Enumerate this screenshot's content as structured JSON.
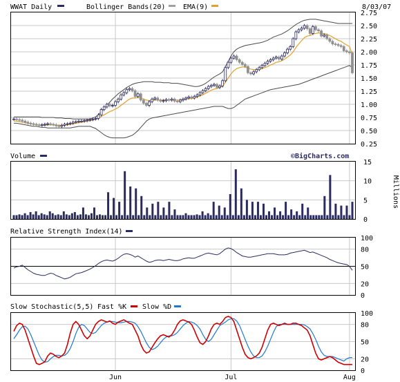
{
  "chart_data": [
    {
      "type": "candlestick",
      "panel": "price",
      "symbol_label": "WWAT Daily",
      "legend": [
        {
          "label": "WWAT Daily",
          "color": "#2b2b5f"
        },
        {
          "label": "Bollinger Bands(20)",
          "color": "#a0a0a0"
        },
        {
          "label": "EMA(9)",
          "color": "#e0a030"
        }
      ],
      "date_label": "8/03/07",
      "ylim": [
        0.25,
        2.75
      ],
      "yticks": [
        "2.75",
        "2.50",
        "2.25",
        "2.00",
        "1.75",
        "1.50",
        "1.25",
        "1.00",
        "0.75",
        "0.50",
        "0.25"
      ],
      "xticks": [
        {
          "label": "Jun",
          "index": 36
        },
        {
          "label": "Jul",
          "index": 77
        },
        {
          "label": "Aug",
          "index": 119
        }
      ],
      "close": [
        0.72,
        0.71,
        0.7,
        0.68,
        0.66,
        0.64,
        0.63,
        0.62,
        0.61,
        0.6,
        0.61,
        0.62,
        0.63,
        0.62,
        0.61,
        0.59,
        0.58,
        0.6,
        0.62,
        0.63,
        0.64,
        0.66,
        0.67,
        0.68,
        0.68,
        0.69,
        0.7,
        0.71,
        0.72,
        0.73,
        0.8,
        0.9,
        0.95,
        1.0,
        0.97,
        0.98,
        1.05,
        1.1,
        1.18,
        1.22,
        1.28,
        1.3,
        1.26,
        1.15,
        1.2,
        1.08,
        1.02,
        0.98,
        1.05,
        1.1,
        1.12,
        1.08,
        1.06,
        1.07,
        1.09,
        1.08,
        1.1,
        1.06,
        1.05,
        1.08,
        1.1,
        1.12,
        1.14,
        1.12,
        1.15,
        1.18,
        1.22,
        1.26,
        1.3,
        1.34,
        1.36,
        1.38,
        1.32,
        1.35,
        1.45,
        1.7,
        1.8,
        1.88,
        1.92,
        1.85,
        1.8,
        1.76,
        1.72,
        1.6,
        1.58,
        1.62,
        1.66,
        1.7,
        1.74,
        1.78,
        1.82,
        1.85,
        1.88,
        1.9,
        1.86,
        1.92,
        1.98,
        2.05,
        2.1,
        2.25,
        2.38,
        2.42,
        2.45,
        2.5,
        2.44,
        2.35,
        2.48,
        2.42,
        2.4,
        2.3,
        2.32,
        2.25,
        2.2,
        2.15,
        2.14,
        2.12,
        2.1,
        2.02,
        2.0,
        1.98,
        1.6
      ],
      "ema9": [
        0.68,
        0.68,
        0.67,
        0.66,
        0.65,
        0.64,
        0.63,
        0.62,
        0.61,
        0.6,
        0.6,
        0.6,
        0.61,
        0.61,
        0.61,
        0.6,
        0.6,
        0.6,
        0.6,
        0.61,
        0.62,
        0.63,
        0.64,
        0.65,
        0.66,
        0.67,
        0.68,
        0.69,
        0.7,
        0.71,
        0.73,
        0.77,
        0.8,
        0.83,
        0.86,
        0.88,
        0.91,
        0.94,
        0.98,
        1.02,
        1.06,
        1.1,
        1.12,
        1.12,
        1.13,
        1.12,
        1.1,
        1.08,
        1.07,
        1.08,
        1.08,
        1.08,
        1.08,
        1.08,
        1.08,
        1.08,
        1.08,
        1.08,
        1.08,
        1.08,
        1.09,
        1.1,
        1.11,
        1.11,
        1.12,
        1.14,
        1.16,
        1.18,
        1.21,
        1.24,
        1.27,
        1.29,
        1.3,
        1.32,
        1.35,
        1.42,
        1.5,
        1.58,
        1.64,
        1.68,
        1.7,
        1.71,
        1.71,
        1.69,
        1.67,
        1.66,
        1.66,
        1.67,
        1.68,
        1.7,
        1.72,
        1.75,
        1.77,
        1.8,
        1.81,
        1.83,
        1.86,
        1.9,
        1.94,
        2.0,
        2.08,
        2.15,
        2.21,
        2.27,
        2.3,
        2.31,
        2.34,
        2.35,
        2.36,
        2.35,
        2.35,
        2.33,
        2.31,
        2.28,
        2.25,
        2.22,
        2.2,
        2.16,
        2.13,
        2.1,
        1.95
      ],
      "bb_upper": [
        0.76,
        0.76,
        0.76,
        0.76,
        0.76,
        0.76,
        0.76,
        0.76,
        0.76,
        0.76,
        0.75,
        0.75,
        0.75,
        0.75,
        0.75,
        0.74,
        0.74,
        0.74,
        0.73,
        0.73,
        0.73,
        0.72,
        0.72,
        0.72,
        0.72,
        0.72,
        0.72,
        0.72,
        0.74,
        0.76,
        0.8,
        0.86,
        0.92,
        0.98,
        1.04,
        1.1,
        1.15,
        1.2,
        1.24,
        1.28,
        1.32,
        1.35,
        1.38,
        1.4,
        1.41,
        1.42,
        1.43,
        1.43,
        1.43,
        1.43,
        1.42,
        1.42,
        1.42,
        1.41,
        1.41,
        1.41,
        1.4,
        1.4,
        1.4,
        1.39,
        1.38,
        1.37,
        1.36,
        1.35,
        1.34,
        1.34,
        1.35,
        1.37,
        1.4,
        1.44,
        1.48,
        1.52,
        1.55,
        1.58,
        1.62,
        1.72,
        1.82,
        1.92,
        2.0,
        2.05,
        2.08,
        2.1,
        2.12,
        2.13,
        2.14,
        2.15,
        2.16,
        2.17,
        2.18,
        2.2,
        2.22,
        2.25,
        2.28,
        2.3,
        2.32,
        2.34,
        2.37,
        2.4,
        2.44,
        2.48,
        2.52,
        2.55,
        2.58,
        2.6,
        2.61,
        2.62,
        2.62,
        2.62,
        2.61,
        2.6,
        2.59,
        2.58,
        2.57,
        2.56,
        2.55,
        2.54,
        2.54,
        2.54,
        2.54,
        2.54,
        2.54
      ],
      "bb_lower": [
        0.64,
        0.64,
        0.63,
        0.62,
        0.61,
        0.6,
        0.59,
        0.58,
        0.58,
        0.57,
        0.56,
        0.56,
        0.55,
        0.55,
        0.55,
        0.55,
        0.55,
        0.55,
        0.55,
        0.55,
        0.55,
        0.56,
        0.57,
        0.58,
        0.58,
        0.58,
        0.58,
        0.58,
        0.56,
        0.54,
        0.5,
        0.46,
        0.42,
        0.39,
        0.37,
        0.36,
        0.36,
        0.36,
        0.36,
        0.36,
        0.37,
        0.39,
        0.41,
        0.45,
        0.5,
        0.56,
        0.62,
        0.68,
        0.72,
        0.74,
        0.75,
        0.76,
        0.77,
        0.78,
        0.79,
        0.8,
        0.81,
        0.82,
        0.83,
        0.84,
        0.85,
        0.86,
        0.87,
        0.88,
        0.89,
        0.9,
        0.91,
        0.92,
        0.93,
        0.94,
        0.95,
        0.96,
        0.96,
        0.96,
        0.96,
        0.94,
        0.92,
        0.92,
        0.94,
        0.98,
        1.02,
        1.06,
        1.1,
        1.12,
        1.14,
        1.16,
        1.18,
        1.2,
        1.22,
        1.24,
        1.26,
        1.28,
        1.29,
        1.3,
        1.31,
        1.32,
        1.33,
        1.34,
        1.35,
        1.36,
        1.37,
        1.38,
        1.4,
        1.42,
        1.44,
        1.46,
        1.48,
        1.5,
        1.52,
        1.54,
        1.56,
        1.58,
        1.6,
        1.62,
        1.64,
        1.66,
        1.68,
        1.7,
        1.72,
        1.74,
        1.7
      ]
    },
    {
      "type": "bar",
      "panel": "volume",
      "title": "Volume",
      "legend_color": "#2b2b5f",
      "credit": "©BigCharts.com",
      "ylabel": "Millions",
      "ylim": [
        0,
        15
      ],
      "yticks": [
        "15",
        "10",
        "5",
        "0"
      ],
      "values": [
        1.0,
        1.0,
        1.2,
        1.0,
        1.5,
        1.0,
        1.8,
        1.2,
        2.0,
        1.0,
        1.5,
        1.2,
        1.0,
        2.0,
        1.5,
        1.0,
        1.2,
        1.0,
        2.0,
        1.2,
        1.0,
        1.5,
        1.8,
        1.0,
        1.2,
        3.0,
        1.2,
        1.0,
        1.5,
        3.0,
        1.0,
        1.2,
        1.0,
        1.0,
        7.0,
        1.0,
        5.5,
        1.0,
        4.5,
        1.0,
        12.5,
        1.0,
        8.5,
        1.0,
        8.0,
        1.0,
        6.0,
        1.0,
        3.0,
        1.0,
        4.0,
        1.0,
        4.5,
        1.0,
        3.0,
        1.0,
        4.5,
        1.0,
        2.5,
        1.0,
        1.0,
        1.0,
        1.5,
        1.0,
        1.0,
        1.0,
        1.2,
        1.0,
        2.0,
        1.0,
        1.5,
        1.0,
        4.5,
        1.0,
        3.5,
        1.0,
        3.0,
        1.0,
        6.5,
        1.0,
        13.0,
        1.0,
        8.0,
        1.0,
        5.0,
        1.0,
        4.5,
        1.0,
        4.5,
        1.0,
        4.0,
        1.0,
        2.0,
        1.0,
        3.0,
        1.0,
        2.0,
        1.0,
        4.5,
        1.0,
        2.5,
        1.0,
        2.0,
        1.0,
        4.0,
        1.0,
        3.0,
        1.0,
        1.0,
        1.0,
        1.0,
        1.0,
        6.0,
        1.0,
        11.5,
        1.0,
        4.0,
        1.0,
        3.5,
        1.0,
        3.5,
        1.0,
        4.5
      ]
    },
    {
      "type": "line",
      "panel": "rsi",
      "title": "Relative Strength Index(14)",
      "legend_color": "#2b2b5f",
      "ylim": [
        0,
        100
      ],
      "yticks": [
        "100",
        "80",
        "50",
        "20",
        "0"
      ],
      "reference_line": 50,
      "values": [
        47,
        49,
        50,
        52,
        48,
        44,
        41,
        38,
        36,
        35,
        34,
        34,
        36,
        38,
        37,
        34,
        32,
        30,
        28,
        29,
        31,
        34,
        37,
        38,
        39,
        41,
        43,
        45,
        48,
        51,
        55,
        58,
        60,
        61,
        60,
        59,
        61,
        64,
        68,
        71,
        72,
        71,
        69,
        66,
        68,
        65,
        62,
        59,
        57,
        58,
        60,
        61,
        61,
        60,
        61,
        62,
        61,
        60,
        60,
        61,
        63,
        64,
        65,
        64,
        64,
        66,
        68,
        70,
        72,
        73,
        72,
        71,
        70,
        72,
        76,
        80,
        82,
        81,
        78,
        74,
        71,
        68,
        67,
        66,
        66,
        67,
        68,
        69,
        70,
        71,
        72,
        72,
        72,
        71,
        70,
        70,
        70,
        71,
        73,
        74,
        75,
        76,
        77,
        78,
        76,
        74,
        75,
        73,
        71,
        69,
        67,
        65,
        62,
        60,
        58,
        56,
        55,
        54,
        53,
        50,
        43
      ]
    },
    {
      "type": "line",
      "panel": "stochastic",
      "title": "Slow Stochastic(5,5)",
      "legend": [
        {
          "label": "Fast %K",
          "color": "#cc0000"
        },
        {
          "label": "Slow %D",
          "color": "#1e78d0"
        }
      ],
      "ylim": [
        0,
        100
      ],
      "yticks": [
        "100",
        "80",
        "50",
        "20",
        "0"
      ],
      "reference_lines": [
        80,
        20
      ],
      "fast_k": [
        68,
        78,
        82,
        80,
        70,
        55,
        40,
        25,
        12,
        10,
        12,
        15,
        25,
        30,
        28,
        24,
        22,
        25,
        30,
        45,
        65,
        80,
        85,
        80,
        70,
        60,
        55,
        60,
        70,
        80,
        85,
        88,
        86,
        84,
        86,
        82,
        80,
        84,
        86,
        88,
        85,
        82,
        80,
        70,
        60,
        45,
        35,
        30,
        32,
        40,
        48,
        55,
        60,
        62,
        60,
        58,
        62,
        70,
        80,
        86,
        88,
        86,
        84,
        80,
        70,
        58,
        48,
        45,
        50,
        60,
        72,
        80,
        82,
        80,
        85,
        92,
        94,
        92,
        85,
        70,
        55,
        40,
        28,
        22,
        20,
        22,
        25,
        30,
        40,
        55,
        70,
        80,
        82,
        80,
        78,
        80,
        82,
        80,
        80,
        82,
        82,
        80,
        78,
        74,
        70,
        60,
        45,
        30,
        20,
        18,
        20,
        22,
        24,
        22,
        18,
        14,
        12,
        10,
        10,
        10,
        10
      ],
      "slow_d": [
        55,
        62,
        70,
        76,
        77,
        72,
        62,
        50,
        38,
        26,
        18,
        14,
        15,
        20,
        24,
        26,
        26,
        25,
        26,
        30,
        38,
        50,
        64,
        75,
        80,
        78,
        72,
        66,
        64,
        66,
        72,
        78,
        82,
        84,
        85,
        85,
        84,
        83,
        83,
        84,
        85,
        85,
        84,
        82,
        76,
        68,
        58,
        48,
        40,
        36,
        38,
        42,
        48,
        54,
        58,
        60,
        60,
        62,
        66,
        72,
        78,
        82,
        85,
        84,
        82,
        78,
        72,
        62,
        54,
        50,
        54,
        62,
        70,
        78,
        81,
        84,
        88,
        90,
        90,
        86,
        78,
        66,
        54,
        42,
        32,
        25,
        22,
        22,
        25,
        32,
        42,
        54,
        66,
        76,
        80,
        80,
        80,
        80,
        80,
        80,
        80,
        80,
        80,
        79,
        76,
        72,
        64,
        54,
        42,
        32,
        26,
        24,
        24,
        24,
        22,
        20,
        18,
        16,
        20,
        22,
        22
      ]
    }
  ]
}
